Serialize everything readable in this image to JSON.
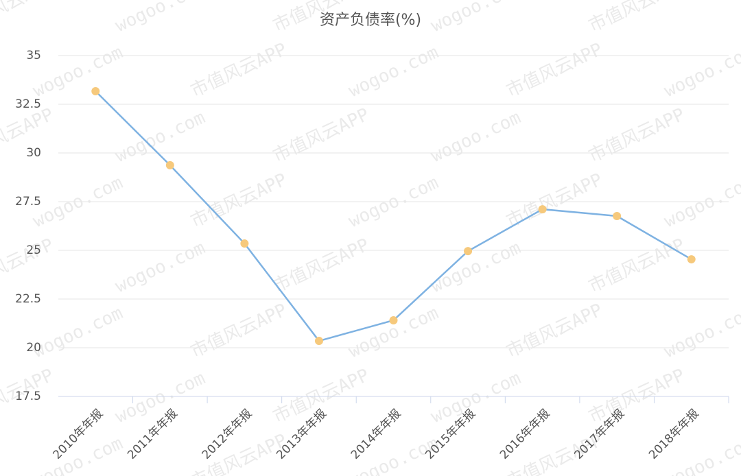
{
  "chart_data": {
    "type": "line",
    "title": "资产负债率(%)",
    "categories": [
      "2010年年报",
      "2011年年报",
      "2012年年报",
      "2013年年报",
      "2014年年报",
      "2015年年报",
      "2016年年报",
      "2017年年报",
      "2018年年报"
    ],
    "series": [
      {
        "name": "资产负债率",
        "color": "#7eb2e2",
        "marker_color": "#f6c97c",
        "values": [
          33.17,
          29.37,
          25.35,
          20.35,
          21.41,
          24.96,
          27.11,
          26.76,
          24.54
        ]
      }
    ],
    "ylim": [
      17.5,
      35
    ],
    "yticks": [
      17.5,
      20,
      22.5,
      25,
      27.5,
      30,
      32.5,
      35
    ],
    "grid": true
  },
  "watermark": {
    "site": "wogoo.com",
    "brand": "市值风云APP"
  }
}
